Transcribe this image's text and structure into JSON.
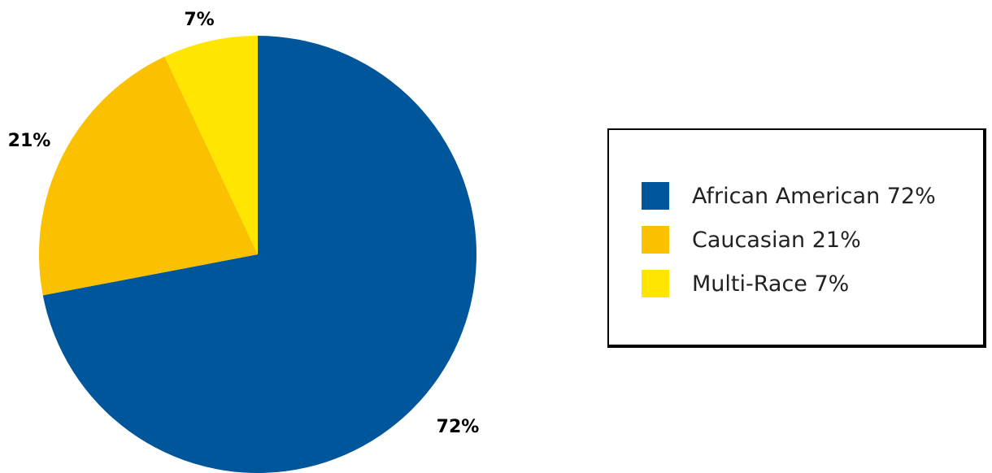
{
  "chart_data": {
    "type": "pie",
    "title": "",
    "categories": [
      "African American",
      "Caucasian",
      "Multi-Race"
    ],
    "values": [
      72,
      21,
      7
    ],
    "slice_labels": [
      "72%",
      "21%",
      "7%"
    ],
    "colors": [
      "#00569B",
      "#FBC000",
      "#FFE500"
    ],
    "legend": {
      "placement": "right",
      "items": [
        {
          "label": "African American 72%",
          "color": "#00569B"
        },
        {
          "label": "Caucasian 21%",
          "color": "#FBC000"
        },
        {
          "label": "Multi-Race 7%",
          "color": "#FFE500"
        }
      ]
    }
  }
}
